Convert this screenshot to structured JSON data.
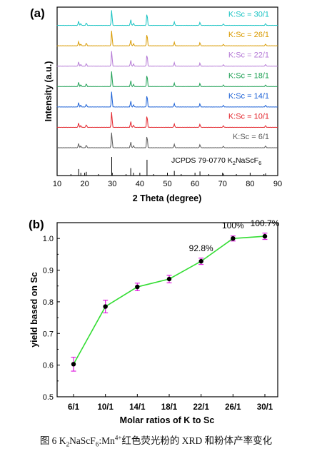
{
  "figure": {
    "caption_prefix": "图 6 K",
    "caption_formula_tail": "NaScF",
    "caption_host_tail": ":Mn",
    "caption_suffix": "红色荧光粉的 XRD 和粉体产率变化",
    "caption_sub_2": "2",
    "caption_sub_6": "6",
    "caption_sup": "4+"
  },
  "chart_data": [
    {
      "panel_label": "(a)",
      "type": "line",
      "xlabel": "2 Theta (degree)",
      "ylabel": "Intensity (a.u.)",
      "xlim": [
        10,
        90
      ],
      "x_ticks": [
        10,
        20,
        30,
        40,
        50,
        60,
        70,
        80,
        90
      ],
      "y_ticks": [],
      "grid": false,
      "legend": "none",
      "peaks_deg": [
        17.8,
        18.6,
        20.6,
        29.8,
        36.7,
        37.7,
        42.6,
        52.5,
        61.8,
        70.3,
        85.6
      ],
      "peak_rel_intensity": [
        0.28,
        0.12,
        0.18,
        1.0,
        0.38,
        0.14,
        0.82,
        0.22,
        0.2,
        0.1,
        0.12
      ],
      "series": [
        {
          "name": "K:Sc = 30/1",
          "color": "#19c3c3"
        },
        {
          "name": "K:Sc = 26/1",
          "color": "#d99a00"
        },
        {
          "name": "K:Sc = 22/1",
          "color": "#b57ad6"
        },
        {
          "name": "K:Sc = 18/1",
          "color": "#1fa055"
        },
        {
          "name": "K:Sc = 14/1",
          "color": "#1c61d6"
        },
        {
          "name": "K:Sc = 10/1",
          "color": "#e3242b"
        },
        {
          "name": "K:Sc = 6/1",
          "color": "#5a5a5a"
        }
      ],
      "reference": {
        "label_prefix": "JCPDS 79-0770 K",
        "label_sub1": "2",
        "label_mid": "NaScF",
        "label_sub2": "6",
        "peaks_deg": [
          17.8,
          18.6,
          20.6,
          29.8,
          36.7,
          37.7,
          42.6,
          52.5,
          61.8,
          70.3,
          85.6
        ],
        "rel_intensity": [
          0.35,
          0.15,
          0.2,
          1.0,
          0.4,
          0.15,
          0.85,
          0.25,
          0.22,
          0.1,
          0.12
        ]
      }
    },
    {
      "panel_label": "(b)",
      "type": "line",
      "xlabel": "Molar ratios of K to Sc",
      "ylabel": "yield based on Sc",
      "categories": [
        "6/1",
        "10/1",
        "14/1",
        "18/1",
        "22/1",
        "26/1",
        "30/1"
      ],
      "ylim": [
        0.5,
        1.05
      ],
      "y_ticks": [
        0.5,
        0.6,
        0.7,
        0.8,
        0.9,
        1.0
      ],
      "grid": false,
      "legend": "none",
      "series": [
        {
          "values": [
            0.603,
            0.785,
            0.847,
            0.872,
            0.928,
            1.0,
            1.007
          ],
          "errors": [
            0.022,
            0.02,
            0.012,
            0.012,
            0.01,
            0.008,
            0.01
          ],
          "line_color": "#33dd33",
          "marker_color": "#000000",
          "error_color": "#e01ee0"
        }
      ],
      "annotations": [
        {
          "text": "92.8%",
          "category": "22/1"
        },
        {
          "text": "100%",
          "category": "26/1"
        },
        {
          "text": "100.7%",
          "category": "30/1"
        }
      ]
    }
  ]
}
